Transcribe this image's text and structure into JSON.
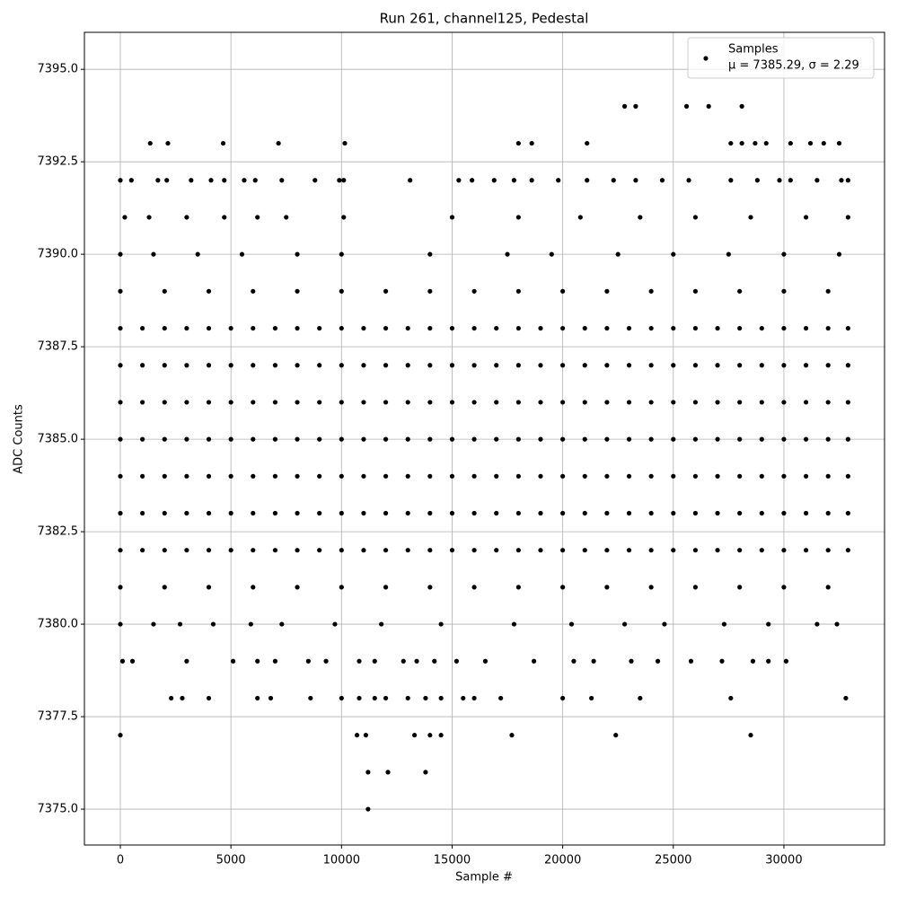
{
  "chart_data": {
    "type": "scatter",
    "title": "Run 261, channel125, Pedestal",
    "x_label": "Sample #",
    "y_label": "ADC Counts",
    "xlim": [
      -1624,
      34550
    ],
    "ylim": [
      7374.03,
      7396.0
    ],
    "xticks": [
      0,
      5000,
      10000,
      15000,
      20000,
      25000,
      30000
    ],
    "yticks": [
      {
        "value": 7375,
        "label": "7375.0"
      },
      {
        "value": 7377.5,
        "label": "7377.5"
      },
      {
        "value": 7380,
        "label": "7380.0"
      },
      {
        "value": 7382.5,
        "label": "7382.5"
      },
      {
        "value": 7385,
        "label": "7385.0"
      },
      {
        "value": 7387.5,
        "label": "7387.5"
      },
      {
        "value": 7390,
        "label": "7390.0"
      },
      {
        "value": 7392.5,
        "label": "7392.5"
      },
      {
        "value": 7395,
        "label": "7395.0"
      }
    ],
    "grid": true,
    "legend": "upper right",
    "legend_note": "μ = 7385.29, σ = 2.29",
    "series": [
      {
        "name": "Samples",
        "color": "#000000",
        "x": [
          0,
          1000,
          2000,
          3000,
          4000,
          5000,
          6000,
          7000,
          8000,
          9000,
          10000,
          11000,
          12000,
          13000,
          14000,
          15000,
          16000,
          17000,
          18000,
          19000,
          20000,
          21000,
          22000,
          23000,
          24000,
          25000,
          26000,
          27000,
          28000,
          29000,
          30000,
          31000,
          32000,
          32900,
          0,
          1000,
          2000,
          3000,
          4000,
          5000,
          6000,
          7000,
          8000,
          9000,
          10000,
          11000,
          12000,
          13000,
          14000,
          15000,
          16000,
          17000,
          18000,
          19000,
          20000,
          21000,
          22000,
          23000,
          24000,
          25000,
          26000,
          27000,
          28000,
          29000,
          30000,
          31000,
          32000,
          32900,
          0,
          1000,
          2000,
          3000,
          4000,
          5000,
          6000,
          7000,
          8000,
          9000,
          10000,
          11000,
          12000,
          13000,
          14000,
          15000,
          16000,
          17000,
          18000,
          19000,
          20000,
          21000,
          22000,
          23000,
          24000,
          25000,
          26000,
          27000,
          28000,
          29000,
          30000,
          31000,
          32000,
          32900,
          0,
          1000,
          2000,
          3000,
          4000,
          5000,
          6000,
          7000,
          8000,
          9000,
          10000,
          11000,
          12000,
          13000,
          14000,
          15000,
          16000,
          17000,
          18000,
          19000,
          20000,
          21000,
          22000,
          23000,
          24000,
          25000,
          26000,
          27000,
          28000,
          29000,
          30000,
          31000,
          32000,
          32900,
          0,
          1000,
          2000,
          3000,
          4000,
          5000,
          6000,
          7000,
          8000,
          9000,
          10000,
          11000,
          12000,
          13000,
          14000,
          15000,
          16000,
          17000,
          18000,
          19000,
          20000,
          21000,
          22000,
          23000,
          24000,
          25000,
          26000,
          27000,
          28000,
          29000,
          30000,
          31000,
          32000,
          32900,
          0,
          1000,
          2000,
          3000,
          4000,
          5000,
          6000,
          7000,
          8000,
          9000,
          10000,
          11000,
          12000,
          13000,
          14000,
          15000,
          16000,
          17000,
          18000,
          19000,
          20000,
          21000,
          22000,
          23000,
          24000,
          25000,
          26000,
          27000,
          28000,
          29000,
          30000,
          31000,
          32000,
          32900,
          0,
          1000,
          2000,
          3000,
          4000,
          5000,
          6000,
          7000,
          8000,
          9000,
          10000,
          11000,
          12000,
          13000,
          14000,
          15000,
          16000,
          17000,
          18000,
          19000,
          20000,
          21000,
          22000,
          23000,
          24000,
          25000,
          26000,
          27000,
          28000,
          29000,
          30000,
          31000,
          32000,
          32900,
          0,
          2000,
          4000,
          6000,
          8000,
          10000,
          12000,
          14000,
          16000,
          18000,
          20000,
          22000,
          24000,
          26000,
          28000,
          30000,
          32000,
          0,
          2000,
          4000,
          6000,
          8000,
          10000,
          12000,
          14000,
          16000,
          18000,
          20000,
          22000,
          24000,
          26000,
          28000,
          30000,
          32000,
          0,
          1500,
          3500,
          5500,
          8000,
          10000,
          14000,
          17500,
          19500,
          22500,
          25000,
          27500,
          30000,
          32500,
          200,
          1300,
          3000,
          4700,
          6200,
          7500,
          10100,
          15000,
          18000,
          20800,
          23500,
          26000,
          28500,
          31000,
          32900,
          0,
          1500,
          2700,
          4200,
          5900,
          7300,
          9700,
          11800,
          14500,
          17800,
          20400,
          22800,
          24600,
          27300,
          29300,
          31500,
          32400,
          0,
          500,
          1700,
          2100,
          3200,
          4100,
          4700,
          5600,
          6100,
          7300,
          8800,
          9900,
          10100,
          13100,
          15300,
          15900,
          16900,
          17800,
          18600,
          19800,
          21100,
          22300,
          23300,
          24500,
          25700,
          27600,
          28800,
          29800,
          30300,
          31500,
          32600,
          32900,
          1350,
          2150,
          4650,
          7150,
          10150,
          18000,
          18600,
          21100,
          27600,
          28100,
          28700,
          29200,
          30300,
          31200,
          31800,
          32500,
          22800,
          23300,
          25600,
          26600,
          28100,
          100,
          550,
          3000,
          5100,
          6200,
          7000,
          8500,
          9300,
          10800,
          11500,
          12800,
          13400,
          14200,
          15200,
          16500,
          18700,
          20500,
          21400,
          23100,
          24300,
          25800,
          27200,
          28600,
          29300,
          30100,
          2300,
          2800,
          4000,
          6200,
          6800,
          8600,
          10000,
          10800,
          11500,
          12000,
          13000,
          13800,
          14500,
          15500,
          16000,
          17200,
          20000,
          21300,
          23500,
          27600,
          32800,
          0,
          10700,
          11100,
          13300,
          14000,
          14500,
          17700,
          22400,
          28500,
          11200,
          12100,
          13800,
          11200
        ],
        "values": [
          7382,
          7382,
          7382,
          7382,
          7382,
          7382,
          7382,
          7382,
          7382,
          7382,
          7382,
          7382,
          7382,
          7382,
          7382,
          7382,
          7382,
          7382,
          7382,
          7382,
          7382,
          7382,
          7382,
          7382,
          7382,
          7382,
          7382,
          7382,
          7382,
          7382,
          7382,
          7382,
          7382,
          7382,
          7383,
          7383,
          7383,
          7383,
          7383,
          7383,
          7383,
          7383,
          7383,
          7383,
          7383,
          7383,
          7383,
          7383,
          7383,
          7383,
          7383,
          7383,
          7383,
          7383,
          7383,
          7383,
          7383,
          7383,
          7383,
          7383,
          7383,
          7383,
          7383,
          7383,
          7383,
          7383,
          7383,
          7383,
          7384,
          7384,
          7384,
          7384,
          7384,
          7384,
          7384,
          7384,
          7384,
          7384,
          7384,
          7384,
          7384,
          7384,
          7384,
          7384,
          7384,
          7384,
          7384,
          7384,
          7384,
          7384,
          7384,
          7384,
          7384,
          7384,
          7384,
          7384,
          7384,
          7384,
          7384,
          7384,
          7384,
          7384,
          7385,
          7385,
          7385,
          7385,
          7385,
          7385,
          7385,
          7385,
          7385,
          7385,
          7385,
          7385,
          7385,
          7385,
          7385,
          7385,
          7385,
          7385,
          7385,
          7385,
          7385,
          7385,
          7385,
          7385,
          7385,
          7385,
          7385,
          7385,
          7385,
          7385,
          7385,
          7385,
          7385,
          7385,
          7386,
          7386,
          7386,
          7386,
          7386,
          7386,
          7386,
          7386,
          7386,
          7386,
          7386,
          7386,
          7386,
          7386,
          7386,
          7386,
          7386,
          7386,
          7386,
          7386,
          7386,
          7386,
          7386,
          7386,
          7386,
          7386,
          7386,
          7386,
          7386,
          7386,
          7386,
          7386,
          7386,
          7386,
          7387,
          7387,
          7387,
          7387,
          7387,
          7387,
          7387,
          7387,
          7387,
          7387,
          7387,
          7387,
          7387,
          7387,
          7387,
          7387,
          7387,
          7387,
          7387,
          7387,
          7387,
          7387,
          7387,
          7387,
          7387,
          7387,
          7387,
          7387,
          7387,
          7387,
          7387,
          7387,
          7387,
          7387,
          7388,
          7388,
          7388,
          7388,
          7388,
          7388,
          7388,
          7388,
          7388,
          7388,
          7388,
          7388,
          7388,
          7388,
          7388,
          7388,
          7388,
          7388,
          7388,
          7388,
          7388,
          7388,
          7388,
          7388,
          7388,
          7388,
          7388,
          7388,
          7388,
          7388,
          7388,
          7388,
          7388,
          7388,
          7381,
          7381,
          7381,
          7381,
          7381,
          7381,
          7381,
          7381,
          7381,
          7381,
          7381,
          7381,
          7381,
          7381,
          7381,
          7381,
          7381,
          7389,
          7389,
          7389,
          7389,
          7389,
          7389,
          7389,
          7389,
          7389,
          7389,
          7389,
          7389,
          7389,
          7389,
          7389,
          7389,
          7389,
          7390,
          7390,
          7390,
          7390,
          7390,
          7390,
          7390,
          7390,
          7390,
          7390,
          7390,
          7390,
          7390,
          7390,
          7391,
          7391,
          7391,
          7391,
          7391,
          7391,
          7391,
          7391,
          7391,
          7391,
          7391,
          7391,
          7391,
          7391,
          7391,
          7380,
          7380,
          7380,
          7380,
          7380,
          7380,
          7380,
          7380,
          7380,
          7380,
          7380,
          7380,
          7380,
          7380,
          7380,
          7380,
          7380,
          7392,
          7392,
          7392,
          7392,
          7392,
          7392,
          7392,
          7392,
          7392,
          7392,
          7392,
          7392,
          7392,
          7392,
          7392,
          7392,
          7392,
          7392,
          7392,
          7392,
          7392,
          7392,
          7392,
          7392,
          7392,
          7392,
          7392,
          7392,
          7392,
          7392,
          7392,
          7392,
          7393,
          7393,
          7393,
          7393,
          7393,
          7393,
          7393,
          7393,
          7393,
          7393,
          7393,
          7393,
          7393,
          7393,
          7393,
          7393,
          7394,
          7394,
          7394,
          7394,
          7394,
          7379,
          7379,
          7379,
          7379,
          7379,
          7379,
          7379,
          7379,
          7379,
          7379,
          7379,
          7379,
          7379,
          7379,
          7379,
          7379,
          7379,
          7379,
          7379,
          7379,
          7379,
          7379,
          7379,
          7379,
          7379,
          7378,
          7378,
          7378,
          7378,
          7378,
          7378,
          7378,
          7378,
          7378,
          7378,
          7378,
          7378,
          7378,
          7378,
          7378,
          7378,
          7378,
          7378,
          7378,
          7378,
          7378,
          7377,
          7377,
          7377,
          7377,
          7377,
          7377,
          7377,
          7377,
          7377,
          7376,
          7376,
          7376,
          7375
        ]
      }
    ]
  }
}
